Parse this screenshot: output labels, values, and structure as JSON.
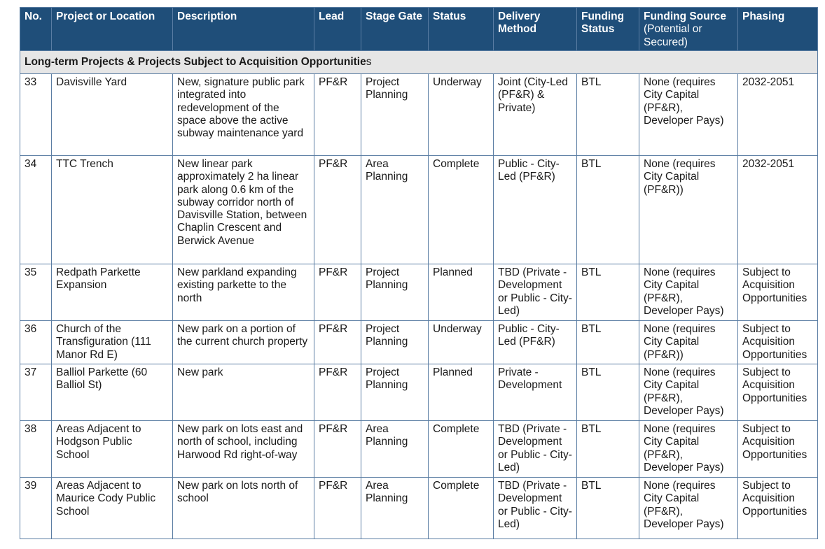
{
  "headers": {
    "no": "No.",
    "project": "Project or Location",
    "description": "Description",
    "lead": "Lead",
    "stage_gate": "Stage Gate",
    "status": "Status",
    "delivery_method": "Delivery Method",
    "funding_status": "Funding Status",
    "funding_source": "Funding Source",
    "funding_source_sub": "(Potential or Secured)",
    "phasing": "Phasing"
  },
  "section": {
    "title_main": "Long-term Projects & Projects Subject to Acquisition Opportunitie",
    "title_tail": "s"
  },
  "rows": [
    {
      "no": "33",
      "project": "Davisville Yard",
      "description": "New, signature public park integrated into redevelopment of the space above the active subway maintenance yard",
      "lead": "PF&R",
      "stage_gate": "Project Planning",
      "status": "Underway",
      "delivery_method": "Joint (City-Led (PF&R) & Private)",
      "funding_status": "BTL",
      "funding_source": "None (requires City Capital (PF&R), Developer Pays)",
      "phasing": "2032-2051"
    },
    {
      "no": "34",
      "project": "TTC Trench",
      "description": "New linear park approximately 2 ha linear park along 0.6 km of the subway corridor north of Davisville Station, between Chaplin Crescent and Berwick Avenue",
      "lead": "PF&R",
      "stage_gate": "Area Planning",
      "status": "Complete",
      "delivery_method": "Public - City-Led (PF&R)",
      "funding_status": "BTL",
      "funding_source": "None (requires City Capital (PF&R))",
      "phasing": "2032-2051"
    },
    {
      "no": "35",
      "project": "Redpath Parkette Expansion",
      "description": "New parkland expanding existing parkette to the north",
      "lead": "PF&R",
      "stage_gate": "Project Planning",
      "status": "Planned",
      "delivery_method": "TBD (Private - Development or Public - City-Led)",
      "funding_status": "BTL",
      "funding_source": "None (requires City Capital (PF&R), Developer Pays)",
      "phasing": "Subject to Acquisition Opportunities"
    },
    {
      "no": "36",
      "project": "Church of the Transfiguration (111 Manor Rd E)",
      "description": "New park on a portion of the current church property",
      "lead": "PF&R",
      "stage_gate": "Project Planning",
      "status": "Underway",
      "delivery_method": "Public - City-Led (PF&R)",
      "funding_status": "BTL",
      "funding_source": "None (requires City Capital (PF&R))",
      "phasing": "Subject to Acquisition Opportunities"
    },
    {
      "no": "37",
      "project": "Balliol Parkette (60 Balliol St)",
      "description": "New park",
      "lead": "PF&R",
      "stage_gate": "Project Planning",
      "status": "Planned",
      "delivery_method": "Private - Development",
      "funding_status": "BTL",
      "funding_source": "None (requires City Capital (PF&R), Developer Pays)",
      "phasing": "Subject to Acquisition Opportunities"
    },
    {
      "no": "38",
      "project": "Areas Adjacent to Hodgson Public School",
      "description": "New park on lots east and north of school, including Harwood Rd right-of-way",
      "lead": "PF&R",
      "stage_gate": "Area Planning",
      "status": "Complete",
      "delivery_method": "TBD (Private - Development or Public - City-Led)",
      "funding_status": "BTL",
      "funding_source": "None (requires City Capital (PF&R), Developer Pays)",
      "phasing": "Subject to Acquisition Opportunities"
    },
    {
      "no": "39",
      "project": "Areas Adjacent to Maurice Cody Public School",
      "description": "New park on lots north of school",
      "lead": "PF&R",
      "stage_gate": "Area Planning",
      "status": "Complete",
      "delivery_method": "TBD (Private - Development or Public - City-Led)",
      "funding_status": "BTL",
      "funding_source": "None (requires City Capital (PF&R), Developer Pays)",
      "phasing": "Subject to Acquisition Opportunities"
    }
  ]
}
